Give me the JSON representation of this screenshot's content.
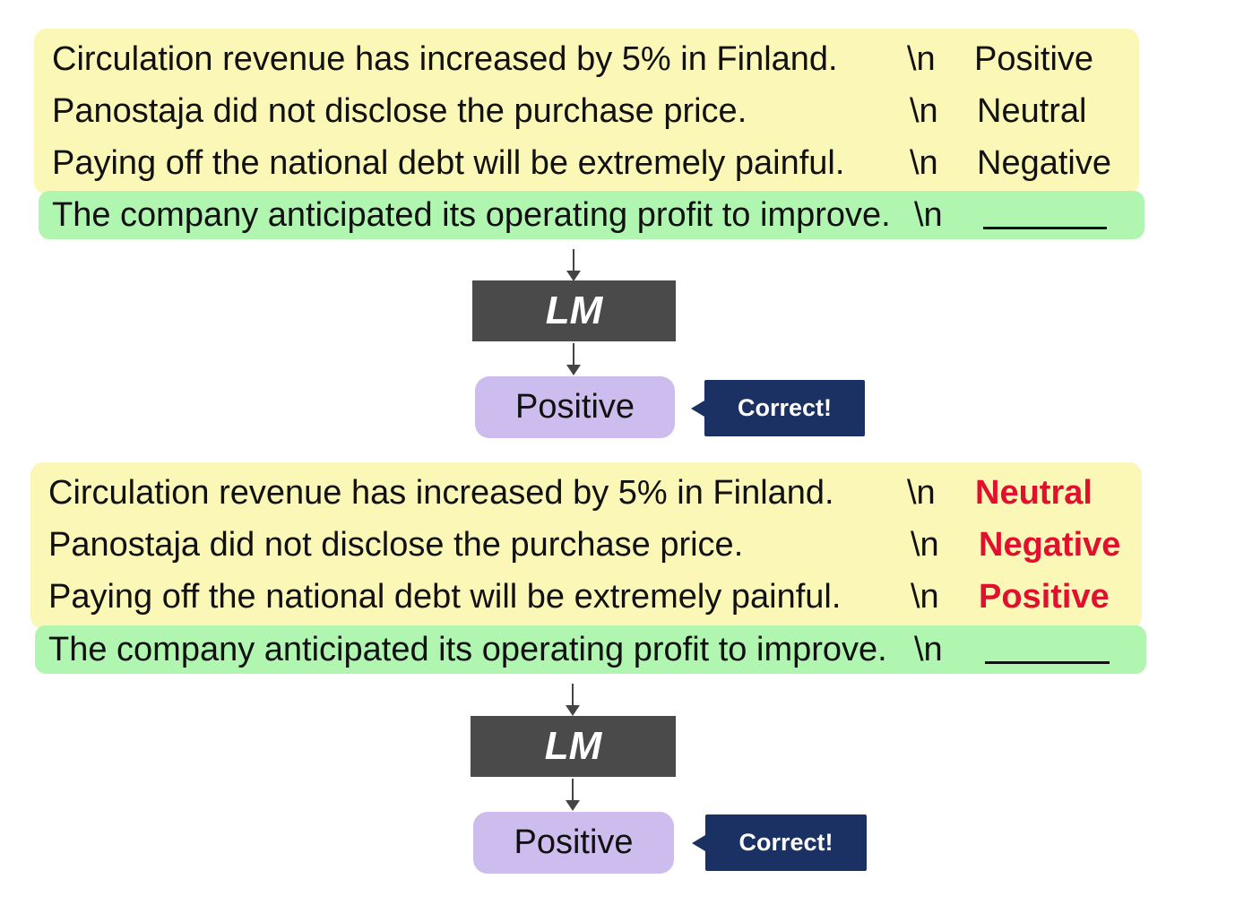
{
  "panels": [
    {
      "demos": [
        {
          "sentence": "Circulation revenue has increased by 5% in Finland.",
          "sep": "\\n",
          "label": "Positive"
        },
        {
          "sentence": "Panostaja did not disclose the purchase price.",
          "sep": "\\n",
          "label": "Neutral"
        },
        {
          "sentence": "Paying off the national debt will be extremely painful.",
          "sep": "\\n",
          "label": "Negative"
        }
      ],
      "query": {
        "sentence": "The company anticipated its operating profit to improve.",
        "sep": "\\n"
      },
      "model_label": "LM",
      "prediction": "Positive",
      "verdict": "Correct!"
    },
    {
      "demos": [
        {
          "sentence": "Circulation revenue has increased by 5% in Finland.",
          "sep": "\\n",
          "label": "Neutral"
        },
        {
          "sentence": "Panostaja did not disclose the purchase price.",
          "sep": "\\n",
          "label": "Negative"
        },
        {
          "sentence": "Paying off the national debt will be extremely painful.",
          "sep": "\\n",
          "label": "Positive"
        }
      ],
      "query": {
        "sentence": "The company anticipated its operating profit to improve.",
        "sep": "\\n"
      },
      "model_label": "LM",
      "prediction": "Positive",
      "verdict": "Correct!"
    }
  ],
  "colors": {
    "demo_background": "#fbf7b6",
    "query_background": "#b0f5b0",
    "model_box": "#4a4a4a",
    "prediction_box": "#cdbdee",
    "verdict_callout": "#1c3163",
    "flipped_label": "#e0102e"
  }
}
